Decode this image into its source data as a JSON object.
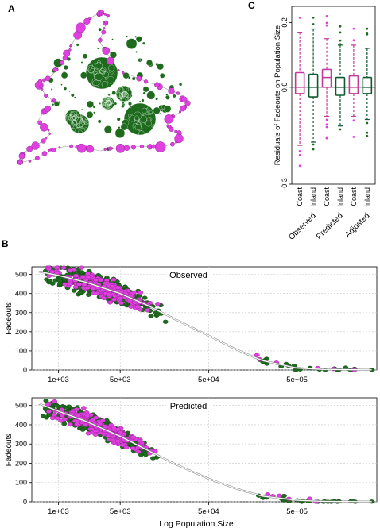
{
  "panels": {
    "a": "A",
    "b": "B",
    "c": "C"
  },
  "colors": {
    "coast": "#e040e0",
    "inland": "#1e6b1e",
    "box_coast": "#c23b9a",
    "box_inland": "#0e5a2e",
    "fit_line": "#ffffff",
    "grid": "#c8c8c8"
  },
  "chart_data": [
    {
      "id": "A",
      "type": "map",
      "description_series": [
        "Coast",
        "Inland"
      ]
    },
    {
      "id": "C",
      "type": "boxplot",
      "ylabel": "Residuals of Fadeouts on Population Size",
      "ylim": [
        -0.3,
        0.25
      ],
      "yticks": [
        0.2,
        0.0,
        -0.3
      ],
      "ytick_labels": [
        "0.2",
        "0.0",
        "-0.3"
      ],
      "groups": [
        {
          "label": "Observed",
          "boxes": [
            {
              "name": "Coast",
              "min": -0.18,
              "q1": -0.02,
              "median": 0.0,
              "q3": 0.045,
              "max": 0.17
            },
            {
              "name": "Inland",
              "min": -0.17,
              "q1": -0.03,
              "median": 0.0,
              "q3": 0.04,
              "max": 0.18
            }
          ]
        },
        {
          "label": "Predicted",
          "boxes": [
            {
              "name": "Coast",
              "min": -0.09,
              "q1": 0.0,
              "median": 0.03,
              "q3": 0.055,
              "max": 0.15
            },
            {
              "name": "Inland",
              "min": -0.12,
              "q1": -0.025,
              "median": 0.0,
              "q3": 0.03,
              "max": 0.13
            }
          ]
        },
        {
          "label": "Adjusted",
          "boxes": [
            {
              "name": "Coast",
              "min": -0.09,
              "q1": -0.02,
              "median": 0.0,
              "q3": 0.035,
              "max": 0.13
            },
            {
              "name": "Inland",
              "min": -0.1,
              "q1": -0.02,
              "median": 0.0,
              "q3": 0.03,
              "max": 0.12
            }
          ]
        }
      ]
    },
    {
      "id": "B1",
      "type": "scatter",
      "title": "Observed",
      "ylabel": "Fadeouts",
      "xscale": "log",
      "xlim": [
        500,
        4000000
      ],
      "ylim": [
        0,
        540
      ],
      "xticks": [
        1000,
        5000,
        50000,
        500000
      ],
      "xtick_labels": [
        "1e+03",
        "5e+03",
        "5e+04",
        "5e+05"
      ],
      "yticks": [
        0,
        100,
        200,
        300,
        400,
        500
      ],
      "ytick_labels": [
        "0",
        "100",
        "200",
        "300",
        "400",
        "500"
      ],
      "fit": {
        "x": [
          600,
          1000,
          2000,
          5000,
          10000,
          20000,
          50000,
          100000,
          200000,
          500000,
          1000000,
          3500000
        ],
        "y": [
          515,
          495,
          460,
          400,
          340,
          270,
          180,
          110,
          50,
          10,
          3,
          1
        ]
      },
      "spread": 60
    },
    {
      "id": "B2",
      "type": "scatter",
      "title": "Predicted",
      "ylabel": "Fadeouts",
      "xlabel": "Log Population Size",
      "xscale": "log",
      "xlim": [
        500,
        4000000
      ],
      "ylim": [
        0,
        540
      ],
      "xticks": [
        1000,
        5000,
        50000,
        500000
      ],
      "xtick_labels": [
        "1e+03",
        "5e+03",
        "5e+04",
        "5e+05"
      ],
      "yticks": [
        0,
        100,
        200,
        300,
        400,
        500
      ],
      "ytick_labels": [
        "0",
        "100",
        "200",
        "300",
        "400",
        "500"
      ],
      "fit": {
        "x": [
          600,
          1000,
          2000,
          5000,
          10000,
          20000,
          50000,
          100000,
          200000,
          500000,
          1000000,
          3500000
        ],
        "y": [
          510,
          470,
          420,
          340,
          270,
          200,
          120,
          70,
          30,
          8,
          2,
          1
        ]
      },
      "spread": 55
    }
  ]
}
